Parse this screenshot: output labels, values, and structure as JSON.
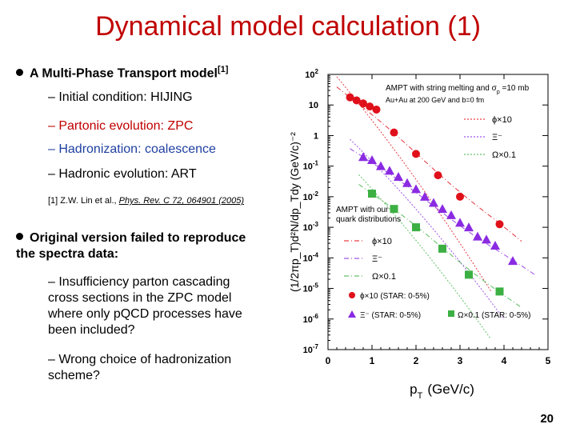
{
  "slide": {
    "title": "Dynamical model calculation (1)",
    "bullet1": "A Multi-Phase Transport model",
    "bullet1_sup": "[1]",
    "sub1": "– Initial condition: HIJING",
    "sub2": "– Partonic evolution: ZPC",
    "sub3": "– Hadronization: coalescence",
    "sub4": "– Hadronic evolution: ART",
    "ref_pre": "[1] Z.W. Lin et al., ",
    "ref_journal": "Phys. Rev. C 72, 064901 (2005)",
    "bullet2_line1": "Original version failed to reproduce",
    "bullet2_line2": "the spectra data:",
    "sub5": "– Insufficiency parton cascading cross sections in the ZPC model where only pQCD processes have been included?",
    "sub6": "– Wrong choice of hadronization scheme?",
    "page_number": "20",
    "colors": {
      "title": "#c00000",
      "sub2": "#c00000",
      "sub3": "#1f3fa0",
      "phi": "#e0101a",
      "xi": "#8a2be2",
      "omega": "#3cb043"
    }
  },
  "chart_data": {
    "type": "scatter",
    "title": "",
    "xlabel": "p",
    "xlabel_sub": "T",
    "xlabel_units": "(GeV/c)",
    "ylabel": "(1/2πp_T)d²N/dp_Tdy (GeV/c)⁻²",
    "xlim": [
      0,
      5
    ],
    "ylim_log10": [
      -7,
      2
    ],
    "x_ticks": [
      "0",
      "1",
      "2",
      "3",
      "4",
      "5"
    ],
    "y_ticks": [
      {
        "exp": 2,
        "label": "10",
        "sup": "2"
      },
      {
        "exp": 1,
        "label": "10",
        "sup": ""
      },
      {
        "exp": 0,
        "label": "1",
        "sup": ""
      },
      {
        "exp": -1,
        "label": "10",
        "sup": "-1"
      },
      {
        "exp": -2,
        "label": "10",
        "sup": "-2"
      },
      {
        "exp": -3,
        "label": "10",
        "sup": "-3"
      },
      {
        "exp": -4,
        "label": "10",
        "sup": "-4"
      },
      {
        "exp": -5,
        "label": "10",
        "sup": "-5"
      },
      {
        "exp": -6,
        "label": "10",
        "sup": "-6"
      },
      {
        "exp": -7,
        "label": "10",
        "sup": "-7"
      }
    ],
    "annotation_top": [
      "AMPT with string melting and σ",
      "p",
      " =10 mb"
    ],
    "annotation_top2": "Au+Au at 200 GeV and b=0 fm",
    "annotation_mid": [
      "AMPT with our",
      "quark distributions"
    ],
    "legend_upper": [
      "ϕ×10",
      "Ξ⁻",
      "Ω×0.1"
    ],
    "legend_lower": [
      "ϕ×10",
      "Ξ⁻",
      "Ω×0.1",
      "ϕ×10 (STAR: 0-5%)",
      "Ξ⁻ (STAR: 0-5%)",
      "Ω×0.1 (STAR: 0-5%)"
    ],
    "series": [
      {
        "name": "ϕ×10 (STAR: 0-5%)",
        "marker": "circle",
        "color": "#e0101a",
        "x": [
          0.5,
          0.65,
          0.8,
          0.95,
          1.1,
          1.5,
          2.0,
          2.5,
          3.0,
          3.9
        ],
        "y_log10": [
          1.25,
          1.15,
          1.05,
          0.95,
          0.85,
          0.1,
          -0.6,
          -1.3,
          -2.0,
          -2.9
        ]
      },
      {
        "name": "Ξ⁻ (STAR: 0-5%)",
        "marker": "triangle",
        "color": "#8a2be2",
        "x": [
          0.8,
          1.0,
          1.2,
          1.4,
          1.6,
          1.8,
          2.0,
          2.2,
          2.4,
          2.6,
          2.8,
          3.0,
          3.2,
          3.4,
          3.6,
          3.8,
          4.2
        ],
        "y_log10": [
          -0.7,
          -0.8,
          -1.0,
          -1.15,
          -1.35,
          -1.55,
          -1.75,
          -2.0,
          -2.2,
          -2.4,
          -2.6,
          -2.85,
          -3.0,
          -3.3,
          -3.4,
          -3.6,
          -4.1
        ]
      },
      {
        "name": "Ω×0.1 (STAR: 0-5%)",
        "marker": "square",
        "color": "#3cb043",
        "x": [
          1.0,
          1.5,
          2.0,
          2.6,
          3.2,
          3.9
        ],
        "y_log10": [
          -1.9,
          -2.4,
          -3.0,
          -3.7,
          -4.55,
          -5.1
        ]
      }
    ]
  }
}
